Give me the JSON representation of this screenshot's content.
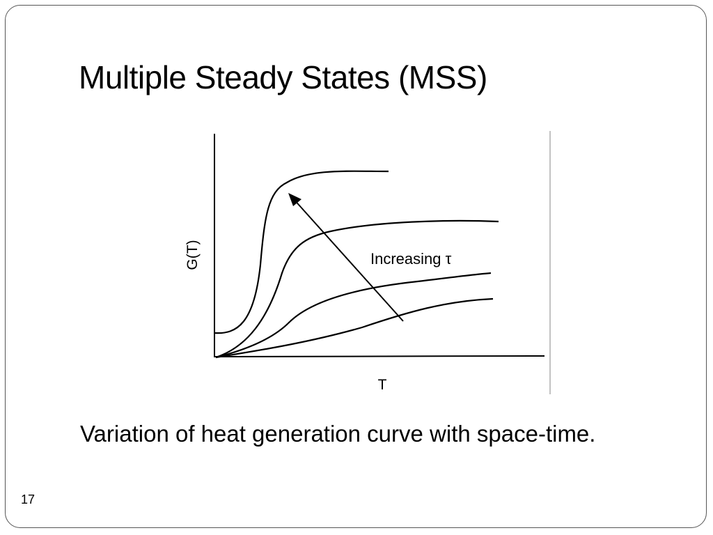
{
  "slide": {
    "title": "Multiple Steady States (MSS)",
    "caption": "Variation of heat generation curve with space-time.",
    "slide_number": "17"
  },
  "diagram": {
    "y_axis_label": "G(T)",
    "x_axis_label": "T",
    "annotation": "Increasing τ",
    "curve_count": 4,
    "arrow_direction": "toward upper-left (steeper curves)"
  }
}
